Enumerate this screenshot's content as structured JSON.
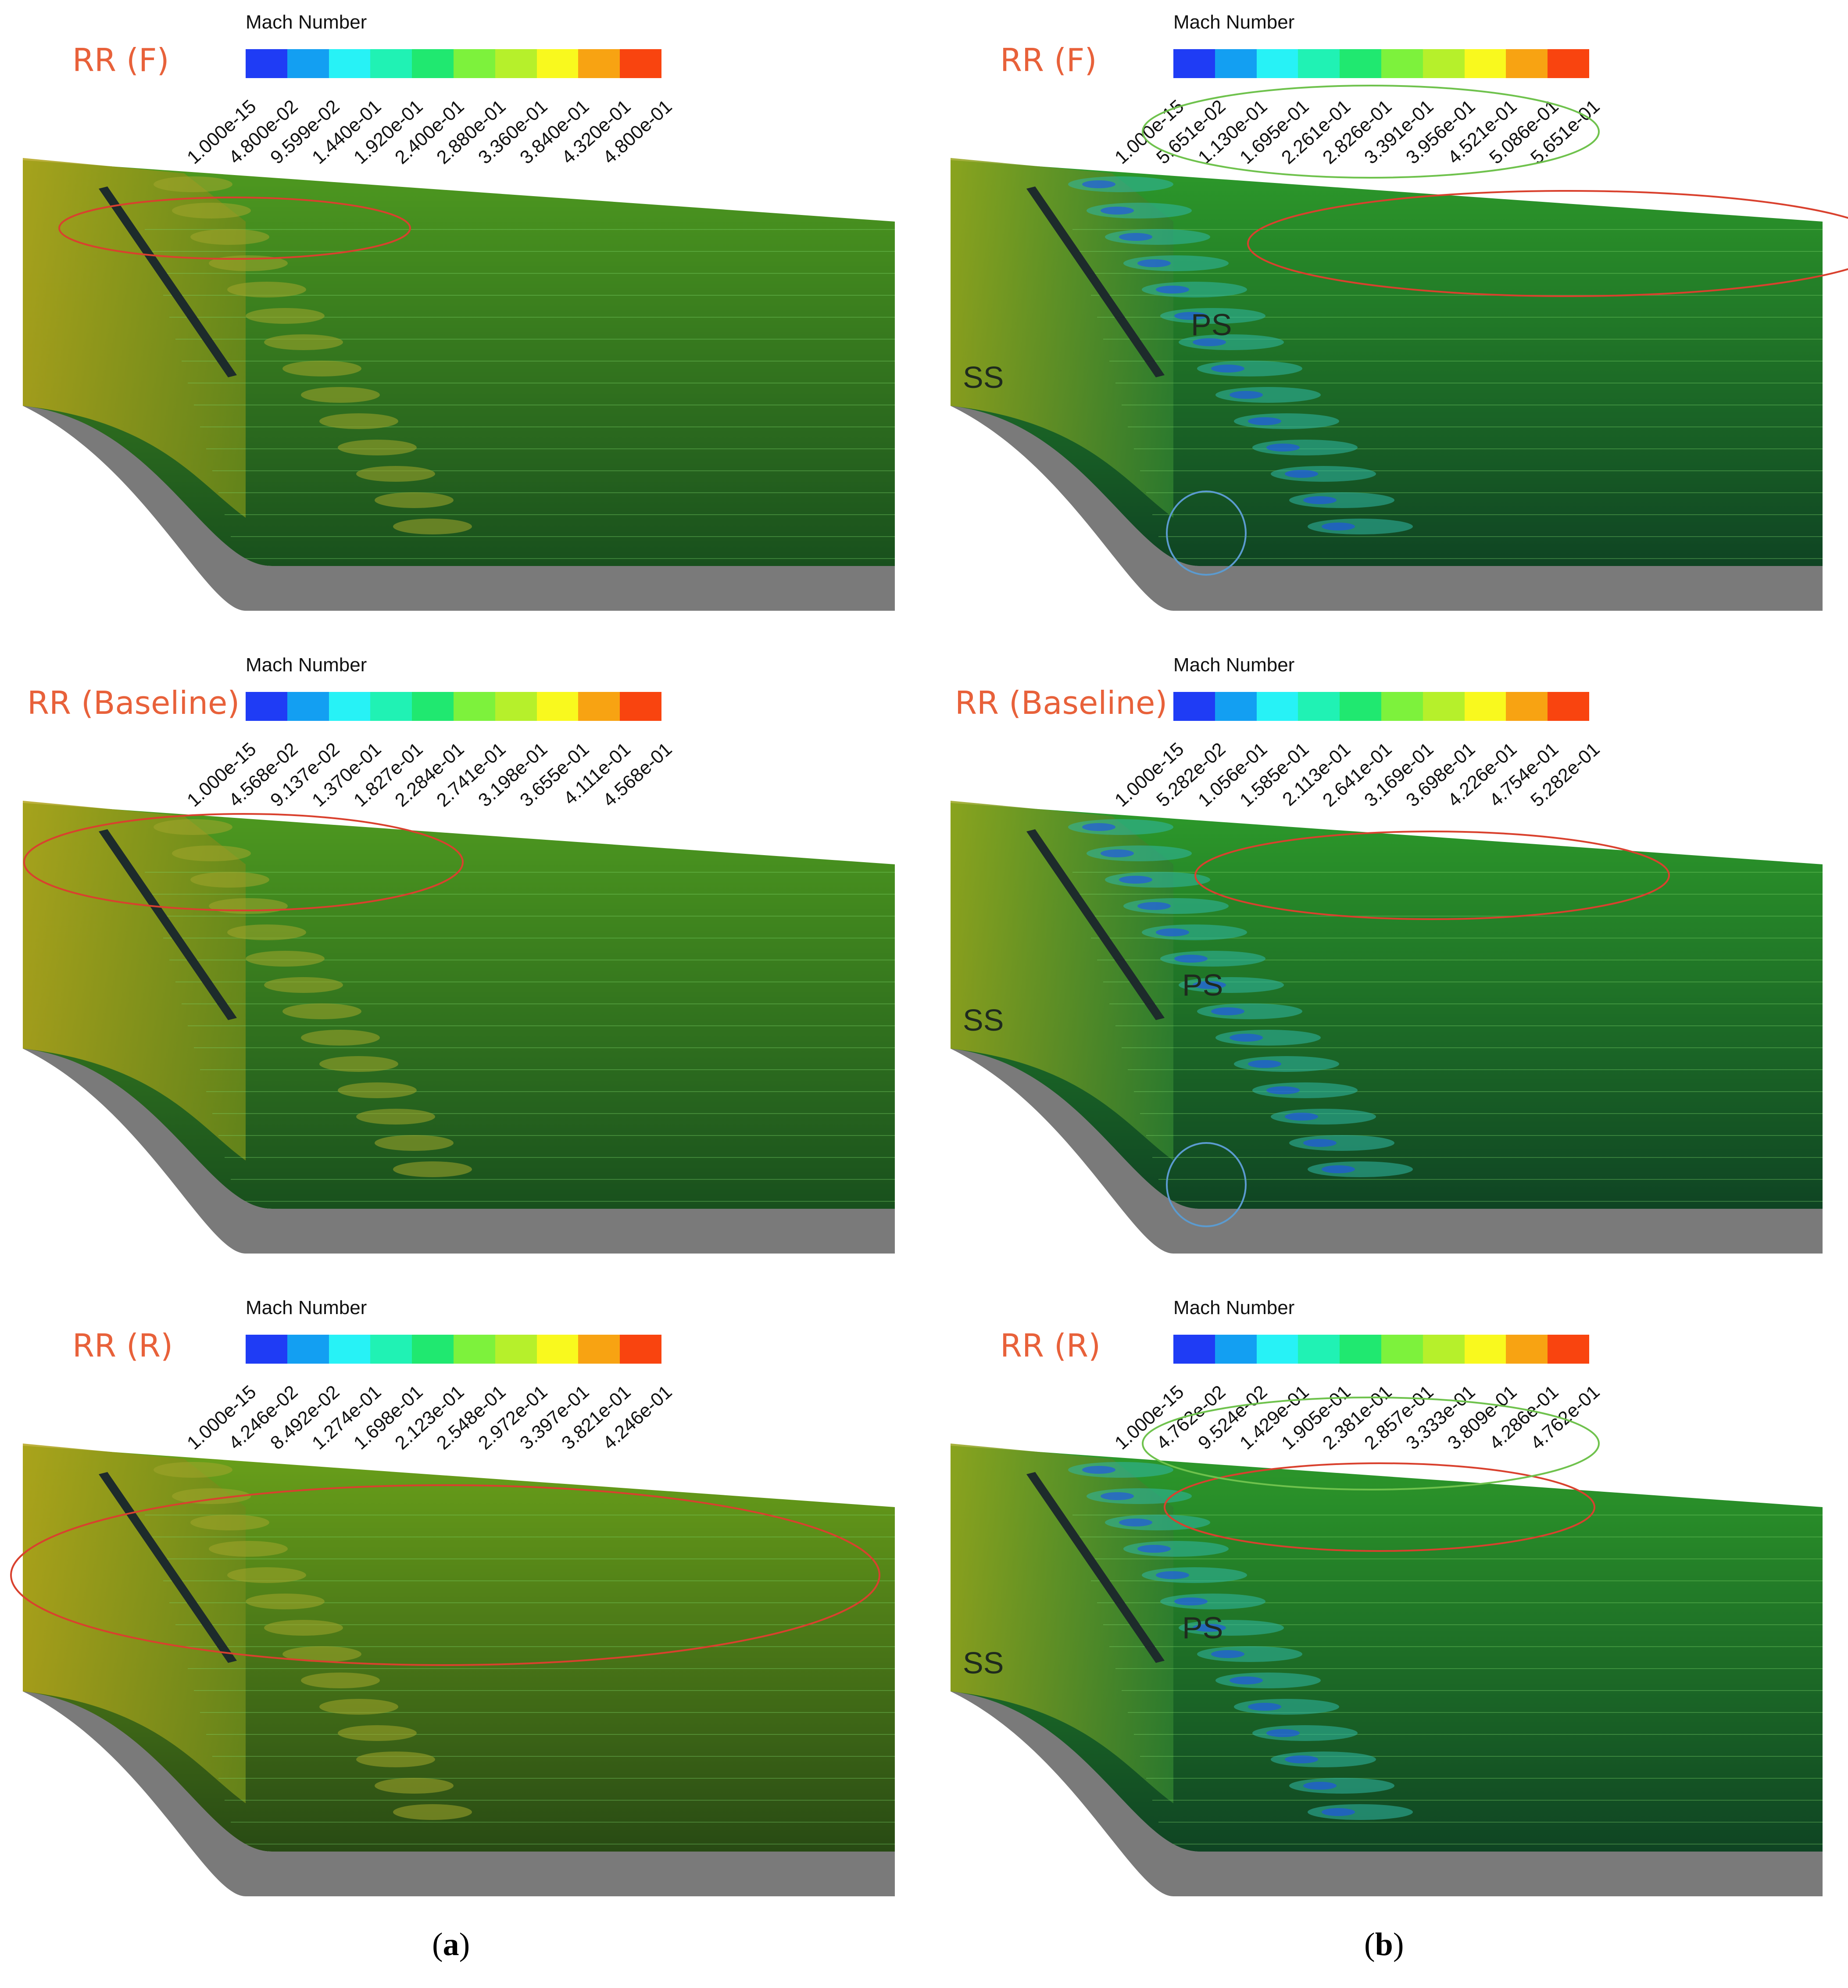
{
  "captions": {
    "a": "a",
    "b": "b"
  },
  "colormap": [
    "#1f3cf5",
    "#139ff2",
    "#27f2f6",
    "#20f2b4",
    "#20e870",
    "#7df23c",
    "#b6f02b",
    "#f9f91e",
    "#f8a312",
    "#f9440f"
  ],
  "colors": {
    "annotation_red": "#d9412e",
    "annotation_green": "#6fc24d",
    "annotation_blue": "#5b9bd0",
    "hub_gray": "#7a7a7a",
    "blade_dark": "#1d2b2b"
  },
  "panels": [
    {
      "id": "a-F",
      "column": "a",
      "case": "RR (F)",
      "colorbar_title": "Mach Number",
      "ticks": [
        "1.000e-15",
        "4.800e-02",
        "9.599e-02",
        "1.440e-01",
        "1.920e-01",
        "2.400e-01",
        "2.880e-01",
        "3.360e-01",
        "3.840e-01",
        "4.320e-01",
        "4.800e-01"
      ],
      "tone": "warm",
      "region_labels": [],
      "annotations": [
        "red-ellipse"
      ]
    },
    {
      "id": "b-F",
      "column": "b",
      "case": "RR (F)",
      "colorbar_title": "Mach Number",
      "ticks": [
        "1.000e-15",
        "5.651e-02",
        "1.130e-01",
        "1.695e-01",
        "2.261e-01",
        "2.826e-01",
        "3.391e-01",
        "3.956e-01",
        "4.521e-01",
        "5.086e-01",
        "5.651e-01"
      ],
      "tone": "cool",
      "region_labels": [
        "PS",
        "SS"
      ],
      "annotations": [
        "red-ellipse",
        "green-ellipse",
        "blue-circle"
      ]
    },
    {
      "id": "a-Baseline",
      "column": "a",
      "case": "RR (Baseline)",
      "colorbar_title": "Mach Number",
      "ticks": [
        "1.000e-15",
        "4.568e-02",
        "9.137e-02",
        "1.370e-01",
        "1.827e-01",
        "2.284e-01",
        "2.741e-01",
        "3.198e-01",
        "3.655e-01",
        "4.111e-01",
        "4.568e-01"
      ],
      "tone": "warm",
      "region_labels": [],
      "annotations": [
        "red-ellipse"
      ]
    },
    {
      "id": "b-Baseline",
      "column": "b",
      "case": "RR (Baseline)",
      "colorbar_title": "Mach Number",
      "ticks": [
        "1.000e-15",
        "5.282e-02",
        "1.056e-01",
        "1.585e-01",
        "2.113e-01",
        "2.641e-01",
        "3.169e-01",
        "3.698e-01",
        "4.226e-01",
        "4.754e-01",
        "5.282e-01"
      ],
      "tone": "cool",
      "region_labels": [
        "PS",
        "SS"
      ],
      "annotations": [
        "red-ellipse",
        "blue-circle"
      ]
    },
    {
      "id": "a-R",
      "column": "a",
      "case": "RR (R)",
      "colorbar_title": "Mach Number",
      "ticks": [
        "1.000e-15",
        "4.246e-02",
        "8.492e-02",
        "1.274e-01",
        "1.698e-01",
        "2.123e-01",
        "2.548e-01",
        "2.972e-01",
        "3.397e-01",
        "3.821e-01",
        "4.246e-01"
      ],
      "tone": "warm-strong",
      "region_labels": [],
      "annotations": [
        "red-ellipse"
      ]
    },
    {
      "id": "b-R",
      "column": "b",
      "case": "RR (R)",
      "colorbar_title": "Mach Number",
      "ticks": [
        "1.000e-15",
        "4.762e-02",
        "9.524e-02",
        "1.429e-01",
        "1.905e-01",
        "2.381e-01",
        "2.857e-01",
        "3.333e-01",
        "3.809e-01",
        "4.286e-01",
        "4.762e-01"
      ],
      "tone": "cool",
      "region_labels": [
        "PS",
        "SS"
      ],
      "annotations": [
        "red-ellipse",
        "green-ellipse"
      ]
    }
  ]
}
